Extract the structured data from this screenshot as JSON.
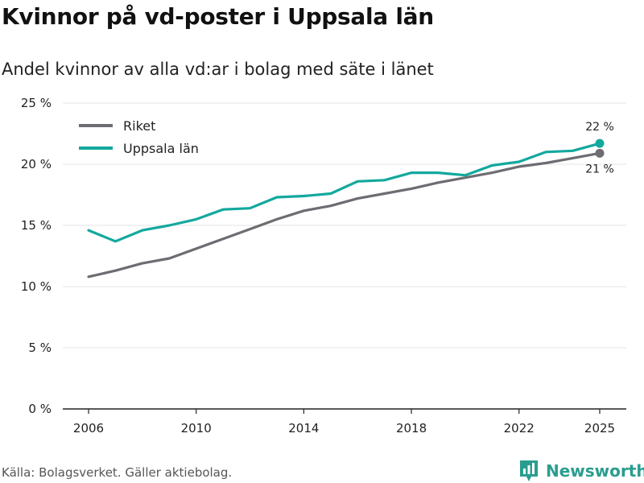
{
  "header": {
    "title": "Kvinnor på vd-poster i Uppsala län",
    "subtitle": "Andel kvinnor av alla vd:ar i bolag med säte i länet"
  },
  "footer": {
    "source": "Källa: Bolagsverket. Gäller aktiebolag.",
    "brand": "Newsworthy",
    "brand_icon": "bar-chart-logo-icon"
  },
  "colors": {
    "riket": "#6e6c72",
    "uppsala": "#13a89e",
    "grid": "#e3e3e3",
    "axis": "#222222"
  },
  "chart_data": {
    "type": "line",
    "title": "Kvinnor på vd-poster i Uppsala län",
    "subtitle": "Andel kvinnor av alla vd:ar i bolag med säte i länet",
    "xlabel": "",
    "ylabel": "",
    "x": [
      2006,
      2007,
      2008,
      2009,
      2010,
      2011,
      2012,
      2013,
      2014,
      2015,
      2016,
      2017,
      2018,
      2019,
      2020,
      2021,
      2022,
      2023,
      2024,
      2025
    ],
    "xticks": [
      2006,
      2010,
      2014,
      2018,
      2022,
      2025
    ],
    "xtick_labels": [
      "2006",
      "2010",
      "2014",
      "2018",
      "2022",
      "2025"
    ],
    "ylim": [
      0,
      25
    ],
    "yticks": [
      0,
      5,
      10,
      15,
      20,
      25
    ],
    "ytick_labels": [
      "0 %",
      "5 %",
      "10 %",
      "15 %",
      "20 %",
      "25 %"
    ],
    "grid": true,
    "legend_position": "top-left",
    "series": [
      {
        "name": "Riket",
        "color": "#6e6c72",
        "values": [
          10.8,
          11.3,
          11.9,
          12.3,
          13.1,
          13.9,
          14.7,
          15.5,
          16.2,
          16.6,
          17.2,
          17.6,
          18.0,
          18.5,
          18.9,
          19.3,
          19.8,
          20.1,
          20.5,
          20.9
        ],
        "end_label": "21 %"
      },
      {
        "name": "Uppsala län",
        "color": "#13a89e",
        "values": [
          14.6,
          13.7,
          14.6,
          15.0,
          15.5,
          16.3,
          16.4,
          17.3,
          17.4,
          17.6,
          18.6,
          18.7,
          19.3,
          19.3,
          19.1,
          19.9,
          20.2,
          21.0,
          21.1,
          21.7
        ],
        "end_label": "22 %"
      }
    ]
  }
}
